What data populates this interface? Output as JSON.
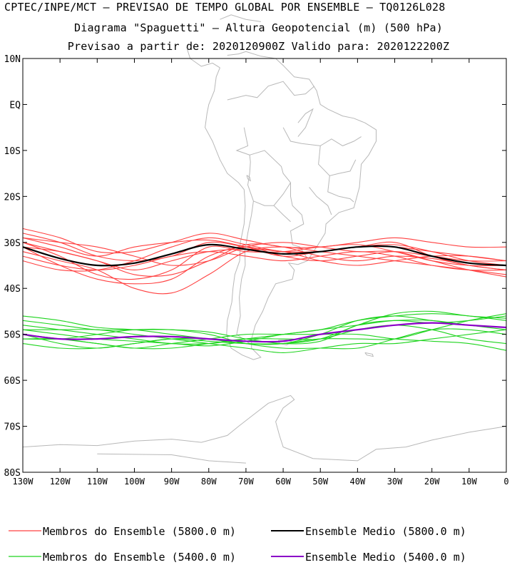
{
  "header": {
    "line1": "CPTEC/INPE/MCT — PREVISAO DE TEMPO GLOBAL POR ENSEMBLE — TQ0126L028",
    "line2": "Diagrama \"Spaguetti\" — Altura Geopotencial (m) (500 hPa)",
    "line3": "Previsao a partir de: 2020120900Z  Valido para: 2020122200Z"
  },
  "map": {
    "lon_range": [
      -130,
      0
    ],
    "lat_range": [
      -80,
      10
    ],
    "y_ticks": [
      "10N",
      "EQ",
      "10S",
      "20S",
      "30S",
      "40S",
      "50S",
      "60S",
      "70S",
      "80S"
    ],
    "x_ticks": [
      "130W",
      "120W",
      "110W",
      "100W",
      "90W",
      "80W",
      "70W",
      "60W",
      "50W",
      "40W",
      "30W",
      "20W",
      "10W",
      "0"
    ],
    "coast_color": "#b8b8b8"
  },
  "chart_data": {
    "type": "line",
    "x_unit": "longitude (deg, negative = W)",
    "y_unit": "latitude (deg, negative = S)",
    "x": [
      -130,
      -120,
      -110,
      -100,
      -90,
      -80,
      -70,
      -60,
      -50,
      -40,
      -30,
      -20,
      -10,
      0
    ],
    "series": [
      {
        "name": "Ensemble Medio (5800.0 m)",
        "color": "#000000",
        "width": 2.2,
        "values": [
          -31,
          -33.5,
          -35,
          -34.5,
          -32.5,
          -30.5,
          -31.5,
          -32.5,
          -32,
          -31,
          -31,
          -33,
          -34.5,
          -35
        ]
      },
      {
        "name": "Ensemble Medio (5400.0 m)",
        "color": "#8b00c8",
        "width": 2.2,
        "values": [
          -50,
          -51,
          -51,
          -50.5,
          -50.5,
          -51,
          -51.5,
          -51.5,
          -50,
          -49,
          -48,
          -47.5,
          -48,
          -48.5
        ]
      },
      {
        "name": "Membros do Ensemble (5800.0 m)",
        "color": "#ff4040",
        "width": 1.1,
        "members": [
          [
            -28,
            -30,
            -33,
            -34,
            -33,
            -30,
            -31,
            -32,
            -32,
            -31,
            -31,
            -32,
            -33,
            -34
          ],
          [
            -29,
            -31,
            -33,
            -31,
            -30,
            -29.5,
            -31,
            -33,
            -32,
            -31,
            -30,
            -33,
            -35,
            -36
          ],
          [
            -30,
            -33,
            -37,
            -38,
            -36,
            -31,
            -32,
            -32,
            -31,
            -30.5,
            -32,
            -34,
            -35,
            -35
          ],
          [
            -31,
            -35,
            -38,
            -39,
            -38,
            -33,
            -31,
            -33,
            -34,
            -33,
            -32,
            -33,
            -34,
            -34
          ],
          [
            -32,
            -34,
            -36,
            -40,
            -41,
            -37,
            -32,
            -31,
            -32,
            -33,
            -34,
            -35,
            -36,
            -37
          ],
          [
            -27,
            -29,
            -32,
            -32,
            -30,
            -28,
            -29.5,
            -31,
            -31,
            -30,
            -29,
            -30,
            -31,
            -31
          ],
          [
            -33,
            -35,
            -36,
            -35,
            -33,
            -32,
            -33,
            -34,
            -33,
            -32,
            -33,
            -35,
            -36,
            -36
          ],
          [
            -30,
            -32,
            -34,
            -37,
            -37,
            -34,
            -30.5,
            -31,
            -33,
            -34,
            -33,
            -33.5,
            -35,
            -36
          ],
          [
            -29,
            -30,
            -31,
            -33,
            -35,
            -34,
            -31,
            -30,
            -31,
            -32,
            -32,
            -34,
            -36,
            -37.5
          ],
          [
            -34,
            -36,
            -36,
            -34,
            -31,
            -29,
            -30.5,
            -32,
            -32,
            -31,
            -30.5,
            -32,
            -34,
            -35
          ],
          [
            -31,
            -32,
            -34,
            -36,
            -34,
            -32,
            -31.5,
            -32,
            -34,
            -35,
            -34,
            -33,
            -33,
            -34
          ]
        ]
      },
      {
        "name": "Membros do Ensemble (5400.0 m)",
        "color": "#1ed41e",
        "width": 1.1,
        "members": [
          [
            -46,
            -47,
            -48.5,
            -49,
            -50,
            -51,
            -52,
            -52,
            -51,
            -48,
            -45.5,
            -45,
            -46,
            -46.5
          ],
          [
            -48,
            -49,
            -50,
            -51,
            -52,
            -52,
            -51,
            -50,
            -49,
            -48,
            -47,
            -47,
            -48,
            -48.5
          ],
          [
            -50,
            -52,
            -53,
            -52,
            -51,
            -51,
            -52,
            -52,
            -50,
            -47,
            -46,
            -47,
            -48,
            -49
          ],
          [
            -51,
            -51,
            -52,
            -53,
            -52,
            -51,
            -50,
            -50,
            -50,
            -50,
            -51,
            -51.5,
            -52,
            -53.5
          ],
          [
            -49,
            -49,
            -49,
            -50,
            -51,
            -52,
            -53,
            -54,
            -53,
            -52,
            -52,
            -51,
            -50,
            -49
          ],
          [
            -52,
            -53,
            -53,
            -52,
            -51,
            -51.5,
            -52,
            -52,
            -51,
            -51,
            -51,
            -49,
            -47,
            -45.5
          ],
          [
            -47,
            -48,
            -49,
            -49,
            -49,
            -49.5,
            -51,
            -52,
            -51.5,
            -48,
            -47,
            -47.5,
            -47,
            -46
          ],
          [
            -51,
            -51,
            -50,
            -49,
            -49,
            -50,
            -52,
            -53,
            -53,
            -53,
            -51,
            -49,
            -49,
            -50
          ],
          [
            -50,
            -51,
            -52,
            -53,
            -53,
            -52,
            -51,
            -51,
            -51,
            -49,
            -48,
            -49,
            -51,
            -52
          ],
          [
            -49,
            -50,
            -51,
            -51.5,
            -52,
            -52.5,
            -51.5,
            -50,
            -49,
            -47,
            -46,
            -45.5,
            -46,
            -47
          ]
        ]
      }
    ]
  },
  "legend": {
    "items": [
      {
        "label": "Membros do Ensemble (5800.0 m)",
        "color": "#ff4040"
      },
      {
        "label": "Ensemble Medio (5800.0 m)",
        "color": "#000000"
      },
      {
        "label": "Membros do Ensemble (5400.0 m)",
        "color": "#1ed41e"
      },
      {
        "label": "Ensemble Medio (5400.0 m)",
        "color": "#8b00c8"
      }
    ]
  }
}
